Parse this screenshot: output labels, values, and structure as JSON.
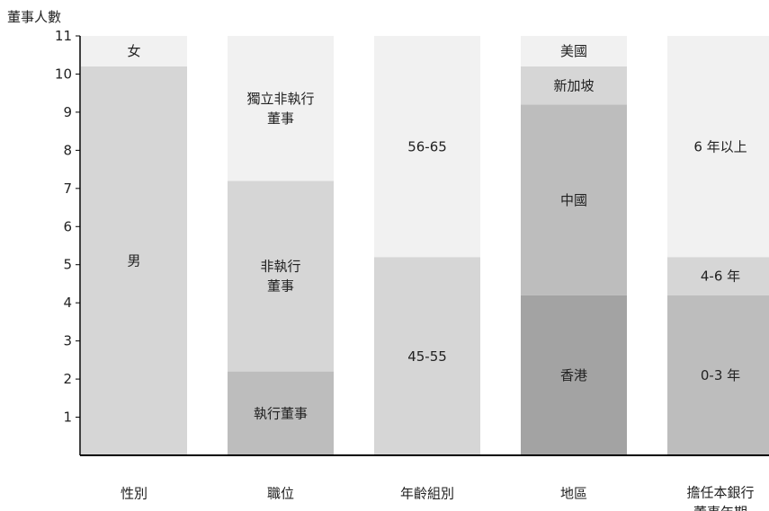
{
  "chart_data": {
    "type": "bar",
    "stacked": true,
    "ylabel": "董事人數",
    "ylim": [
      0,
      11
    ],
    "yticks": [
      1,
      2,
      3,
      4,
      5,
      6,
      7,
      8,
      9,
      10,
      11
    ],
    "grid": false,
    "colors": {
      "segment_1": "#a3a3a3",
      "segment_2": "#bdbdbd",
      "segment_3": "#d6d6d6",
      "segment_4": "#f1f1f1",
      "axis": "#000000"
    },
    "categories": [
      {
        "label": [
          "性別"
        ],
        "segments": [
          {
            "label": [
              "男"
            ],
            "value": 10.2,
            "tone": "segment_3"
          },
          {
            "label": [
              "女"
            ],
            "value": 0.8,
            "tone": "segment_4"
          }
        ]
      },
      {
        "label": [
          "職位"
        ],
        "segments": [
          {
            "label": [
              "執行董事"
            ],
            "value": 2.2,
            "tone": "segment_2"
          },
          {
            "label": [
              "非執行",
              "董事"
            ],
            "value": 5.0,
            "tone": "segment_3"
          },
          {
            "label": [
              "獨立非執行",
              "董事"
            ],
            "value": 3.8,
            "tone": "segment_4"
          }
        ]
      },
      {
        "label": [
          "年齡組別"
        ],
        "segments": [
          {
            "label": [
              "45-55"
            ],
            "value": 5.2,
            "tone": "segment_3"
          },
          {
            "label": [
              "56-65"
            ],
            "value": 5.8,
            "tone": "segment_4"
          }
        ]
      },
      {
        "label": [
          "地區"
        ],
        "segments": [
          {
            "label": [
              "香港"
            ],
            "value": 4.2,
            "tone": "segment_1"
          },
          {
            "label": [
              "中國"
            ],
            "value": 5.0,
            "tone": "segment_2"
          },
          {
            "label": [
              "新加坡"
            ],
            "value": 1.0,
            "tone": "segment_3"
          },
          {
            "label": [
              "美國"
            ],
            "value": 0.8,
            "tone": "segment_4"
          }
        ]
      },
      {
        "label": [
          "擔任本銀行",
          "董事年期"
        ],
        "segments": [
          {
            "label": [
              "0-3 年"
            ],
            "value": 4.2,
            "tone": "segment_2"
          },
          {
            "label": [
              "4-6 年"
            ],
            "value": 1.0,
            "tone": "segment_3"
          },
          {
            "label": [
              "6 年以上"
            ],
            "value": 5.8,
            "tone": "segment_4"
          }
        ]
      }
    ]
  }
}
